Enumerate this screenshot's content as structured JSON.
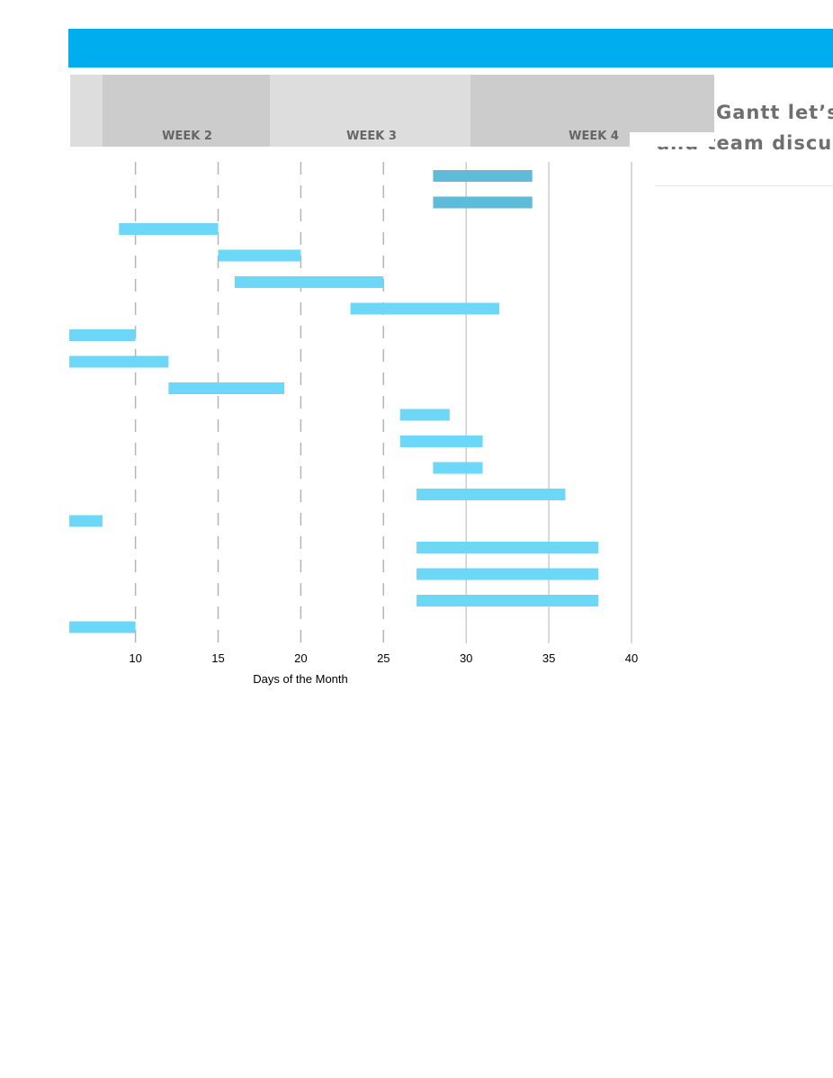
{
  "header": {
    "color": "#00adee"
  },
  "side_text": {
    "line1": "Gantt let’s",
    "line2": "and team discus"
  },
  "weeks": [
    {
      "label": "",
      "color": "#dddddd"
    },
    {
      "label": "WEEK 2",
      "color": "#cccccc"
    },
    {
      "label": "WEEK 3",
      "color": "#dddddd"
    },
    {
      "label": "WEEK 4",
      "color": "#cccccc"
    }
  ],
  "chart_data": {
    "type": "bar",
    "orientation": "horizontal",
    "xlabel": "Days of the Month",
    "xlim": [
      6,
      40
    ],
    "xticks": [
      10,
      15,
      20,
      25,
      30,
      35,
      40
    ],
    "dashed_gridlines": [
      10,
      15,
      20,
      25
    ],
    "solid_gridlines": [
      30,
      35,
      40
    ],
    "colors": {
      "bar": "#6dd7f7",
      "highlight": "#5ebcd8",
      "grid_dashed": "#b5b5b5",
      "grid_solid": "#cccccc"
    },
    "tasks": [
      {
        "start": 28,
        "end": 34,
        "highlight": true
      },
      {
        "start": 28,
        "end": 34,
        "highlight": true
      },
      {
        "start": 9,
        "end": 15
      },
      {
        "start": 15,
        "end": 20
      },
      {
        "start": 16,
        "end": 25
      },
      {
        "start": 23,
        "end": 32
      },
      {
        "start": 6,
        "end": 10
      },
      {
        "start": 6,
        "end": 12
      },
      {
        "start": 12,
        "end": 19
      },
      {
        "start": 26,
        "end": 29
      },
      {
        "start": 26,
        "end": 31
      },
      {
        "start": 28,
        "end": 31
      },
      {
        "start": 27,
        "end": 36
      },
      {
        "start": 6,
        "end": 8
      },
      {
        "start": 27,
        "end": 38
      },
      {
        "start": 27,
        "end": 38
      },
      {
        "start": 27,
        "end": 38
      },
      {
        "start": 6,
        "end": 10
      }
    ]
  }
}
